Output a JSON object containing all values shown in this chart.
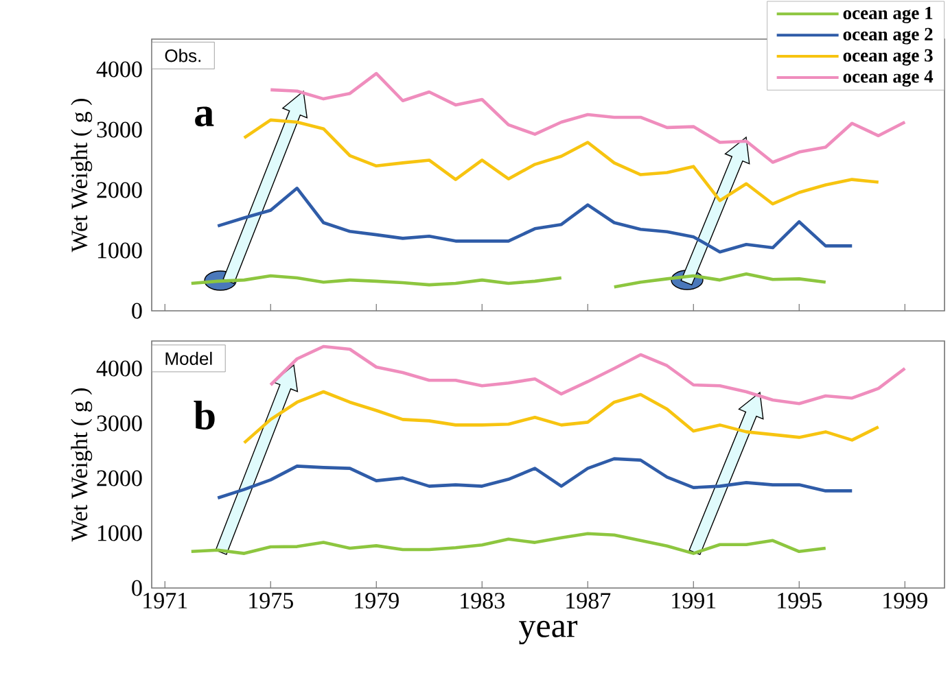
{
  "chart_data": [
    {
      "type": "line",
      "ylabel": "Wet Weight ( g )",
      "annotations": [
        "Obs.",
        "a"
      ],
      "x": [
        1972,
        1973,
        1974,
        1975,
        1976,
        1977,
        1978,
        1979,
        1980,
        1981,
        1982,
        1983,
        1984,
        1985,
        1986,
        1987,
        1988,
        1989,
        1990,
        1991,
        1992,
        1993,
        1994,
        1995,
        1996,
        1997,
        1998,
        1999
      ],
      "xlim": [
        1970.5,
        2000.5
      ],
      "xticks": [
        1971,
        1975,
        1979,
        1983,
        1987,
        1991,
        1995,
        1999
      ],
      "ylim": [
        0,
        4500
      ],
      "yticks": [
        0,
        1000,
        2000,
        3000,
        4000
      ],
      "tick_labels": "y",
      "legend": "top right",
      "series": [
        {
          "name": "ocean age 1",
          "color": "#8dc63f",
          "values": [
            455,
            490,
            510,
            580,
            545,
            475,
            510,
            490,
            465,
            430,
            455,
            510,
            455,
            490,
            545,
            null,
            395,
            475,
            530,
            580,
            510,
            610,
            520,
            530,
            475,
            null,
            null,
            null
          ]
        },
        {
          "name": "ocean age 2",
          "color": "#2f5ca8",
          "values": [
            null,
            1405,
            1540,
            1665,
            2030,
            1460,
            1315,
            1260,
            1200,
            1235,
            1155,
            1155,
            1155,
            1360,
            1430,
            1755,
            1460,
            1350,
            1310,
            1225,
            975,
            1100,
            1045,
            1475,
            1075,
            1075,
            null,
            null
          ]
        },
        {
          "name": "ocean age 3",
          "color": "#f7c410",
          "values": [
            null,
            null,
            2865,
            3160,
            3125,
            3015,
            2570,
            2400,
            2450,
            2495,
            2175,
            2495,
            2185,
            2425,
            2560,
            2790,
            2450,
            2255,
            2290,
            2390,
            1825,
            2105,
            1770,
            1960,
            2085,
            2175,
            2130,
            null
          ]
        },
        {
          "name": "ocean age 4",
          "color": "#ef8dbd",
          "values": [
            null,
            null,
            null,
            3660,
            3640,
            3510,
            3600,
            3930,
            3480,
            3625,
            3410,
            3500,
            3080,
            2925,
            3125,
            3250,
            3205,
            3205,
            3035,
            3050,
            2790,
            2810,
            2460,
            2630,
            2710,
            3105,
            2900,
            3125
          ]
        }
      ]
    },
    {
      "type": "line",
      "xlabel": "year",
      "ylabel": "Wet Weight ( g )",
      "annotations": [
        "Model",
        "b"
      ],
      "x": [
        1972,
        1973,
        1974,
        1975,
        1976,
        1977,
        1978,
        1979,
        1980,
        1981,
        1982,
        1983,
        1984,
        1985,
        1986,
        1987,
        1988,
        1989,
        1990,
        1991,
        1992,
        1993,
        1994,
        1995,
        1996,
        1997,
        1998,
        1999
      ],
      "xlim": [
        1970.5,
        2000.5
      ],
      "xticks": [
        1971,
        1975,
        1979,
        1983,
        1987,
        1991,
        1995,
        1999
      ],
      "ylim": [
        0,
        4500
      ],
      "yticks": [
        0,
        1000,
        2000,
        3000,
        4000
      ],
      "series": [
        {
          "color": "#8dc63f",
          "values": [
            665,
            690,
            630,
            750,
            755,
            830,
            725,
            770,
            700,
            700,
            735,
            785,
            890,
            830,
            915,
            990,
            965,
            865,
            765,
            630,
            790,
            790,
            865,
            665,
            725,
            null,
            null,
            null
          ]
        },
        {
          "color": "#2f5ca8",
          "values": [
            null,
            1640,
            1795,
            1970,
            2220,
            2195,
            2180,
            1955,
            2005,
            1855,
            1880,
            1855,
            1980,
            2180,
            1855,
            2180,
            2355,
            2330,
            2020,
            1830,
            1855,
            1920,
            1880,
            1880,
            1770,
            1770,
            null,
            null
          ]
        },
        {
          "color": "#f7c410",
          "values": [
            null,
            null,
            2645,
            3070,
            3385,
            3575,
            3385,
            3235,
            3070,
            3045,
            2970,
            2970,
            2985,
            3110,
            2970,
            3020,
            3385,
            3525,
            3260,
            2860,
            2970,
            2845,
            2795,
            2745,
            2845,
            2695,
            2935,
            null
          ]
        },
        {
          "color": "#ef8dbd",
          "values": [
            null,
            null,
            null,
            3700,
            4175,
            4400,
            4350,
            4025,
            3925,
            3785,
            3785,
            3685,
            3735,
            3810,
            3535,
            3760,
            4000,
            4250,
            4050,
            3700,
            3685,
            3575,
            3425,
            3360,
            3500,
            3460,
            3635,
            4000
          ]
        }
      ]
    }
  ]
}
